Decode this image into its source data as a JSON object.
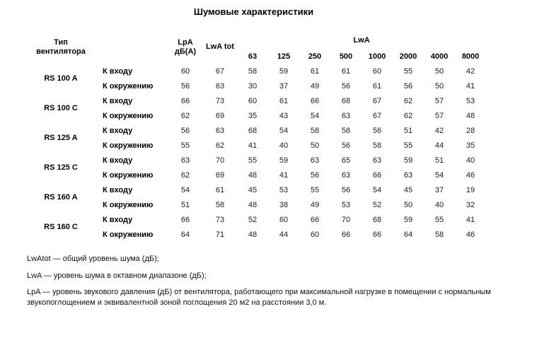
{
  "title": "Шумовые характеристики",
  "table": {
    "header": {
      "type_line1": "Тип",
      "type_line2": "вентилятора",
      "lpa_line1": "LpA",
      "lpa_line2": "дБ(A)",
      "lwa_tot": "LwA tot",
      "lwa_group": "LwA",
      "bands": [
        "63",
        "125",
        "250",
        "500",
        "1000",
        "2000",
        "4000",
        "8000"
      ]
    },
    "groups": [
      {
        "type": "RS 100 A",
        "rows": [
          {
            "label": "К входу",
            "lpa": "60",
            "lwa_tot": "67",
            "bands": [
              "58",
              "59",
              "61",
              "61",
              "60",
              "55",
              "50",
              "42"
            ]
          },
          {
            "label": "К окружению",
            "lpa": "56",
            "lwa_tot": "63",
            "bands": [
              "30",
              "37",
              "49",
              "56",
              "61",
              "56",
              "50",
              "41"
            ]
          }
        ]
      },
      {
        "type": "RS 100 C",
        "rows": [
          {
            "label": "К входу",
            "lpa": "66",
            "lwa_tot": "73",
            "bands": [
              "60",
              "61",
              "66",
              "68",
              "67",
              "62",
              "57",
              "53"
            ]
          },
          {
            "label": "К окружению",
            "lpa": "62",
            "lwa_tot": "69",
            "bands": [
              "35",
              "43",
              "54",
              "63",
              "67",
              "62",
              "57",
              "48"
            ]
          }
        ]
      },
      {
        "type": "RS 125 A",
        "rows": [
          {
            "label": "К входу",
            "lpa": "56",
            "lwa_tot": "63",
            "bands": [
              "68",
              "54",
              "58",
              "58",
              "56",
              "51",
              "42",
              "28"
            ]
          },
          {
            "label": "К окружению",
            "lpa": "55",
            "lwa_tot": "62",
            "bands": [
              "41",
              "40",
              "50",
              "56",
              "58",
              "55",
              "44",
              "35"
            ]
          }
        ]
      },
      {
        "type": "RS 125 C",
        "rows": [
          {
            "label": "К входу",
            "lpa": "63",
            "lwa_tot": "70",
            "bands": [
              "55",
              "59",
              "63",
              "65",
              "63",
              "59",
              "51",
              "40"
            ]
          },
          {
            "label": "К окружению",
            "lpa": "62",
            "lwa_tot": "69",
            "bands": [
              "48",
              "41",
              "56",
              "63",
              "66",
              "63",
              "54",
              "46"
            ]
          }
        ]
      },
      {
        "type": "RS 160 A",
        "rows": [
          {
            "label": "К входу",
            "lpa": "54",
            "lwa_tot": "61",
            "bands": [
              "45",
              "53",
              "55",
              "56",
              "54",
              "45",
              "37",
              "19"
            ]
          },
          {
            "label": "К окружению",
            "lpa": "51",
            "lwa_tot": "58",
            "bands": [
              "48",
              "38",
              "49",
              "53",
              "52",
              "50",
              "40",
              "32"
            ]
          }
        ]
      },
      {
        "type": "RS 160 C",
        "rows": [
          {
            "label": "К входу",
            "lpa": "66",
            "lwa_tot": "73",
            "bands": [
              "52",
              "60",
              "66",
              "70",
              "68",
              "59",
              "55",
              "41"
            ]
          },
          {
            "label": "К окружению",
            "lpa": "64",
            "lwa_tot": "71",
            "bands": [
              "48",
              "44",
              "60",
              "66",
              "66",
              "64",
              "58",
              "46"
            ]
          }
        ]
      }
    ]
  },
  "footnotes": [
    "LwAtot — общий уровень шума (дБ);",
    "LwA — уровень шума в октавном диапазоне (дБ);",
    "LpA — уровень звукового давления (дБ) от вентилятора, работающего при максимальной нагрузке в помещении с нормальным звукопоглощением и эквивалентной зоной поглощения 20 м2 на расстоянии 3,0 м."
  ]
}
